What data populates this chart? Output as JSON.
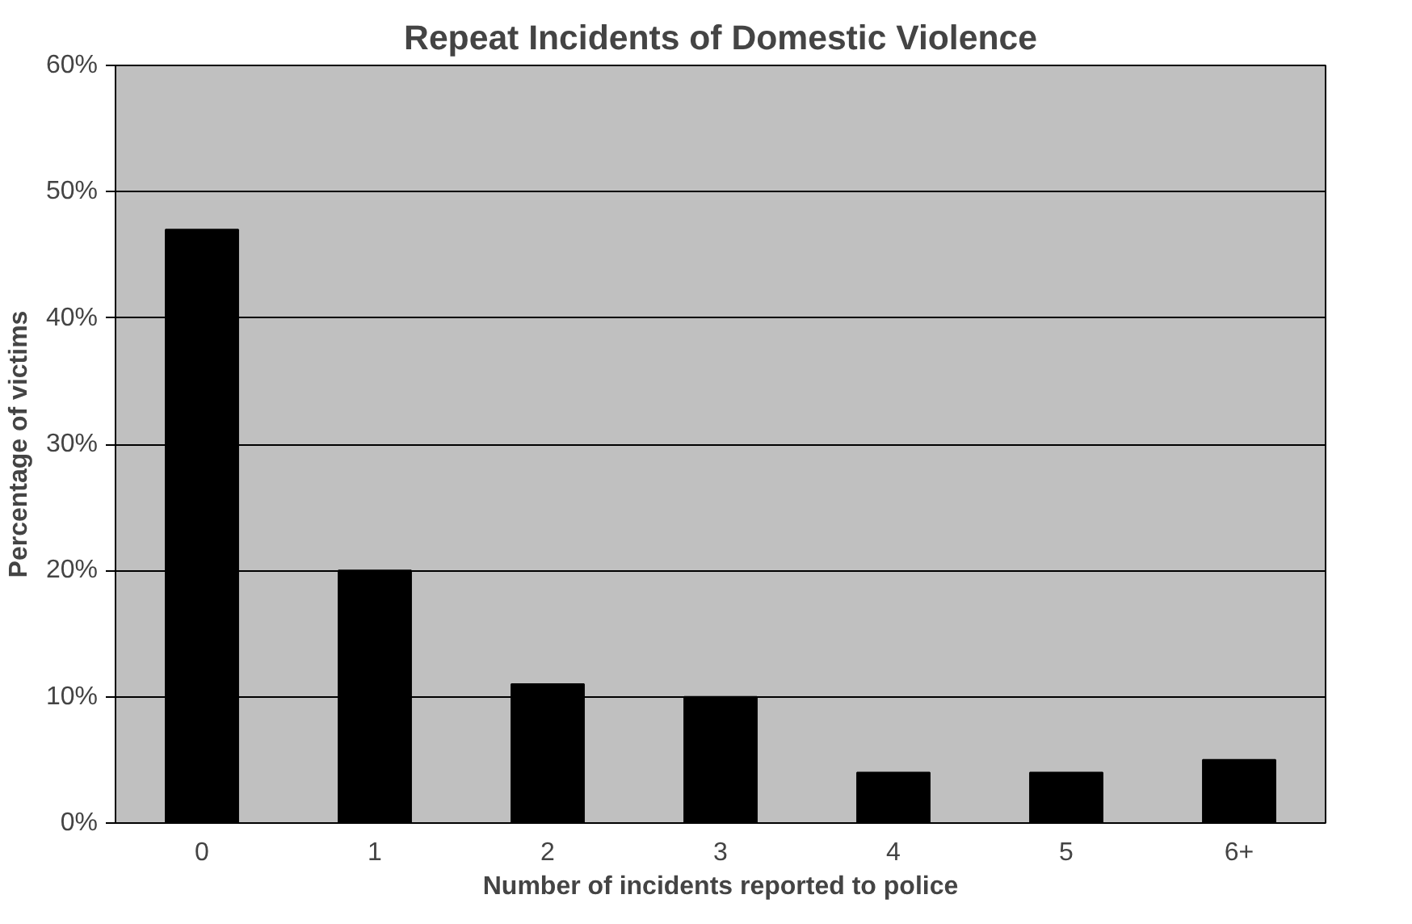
{
  "chart_data": {
    "type": "bar",
    "title": "Repeat Incidents of Domestic Violence",
    "xlabel": "Number of incidents reported to police",
    "ylabel": "Percentage of victims",
    "categories": [
      "0",
      "1",
      "2",
      "3",
      "4",
      "5",
      "6+"
    ],
    "values": [
      47,
      20,
      11,
      10,
      4,
      4,
      5
    ],
    "color": "#000000",
    "ylim": [
      0,
      60
    ],
    "yticks": [
      {
        "value": 0,
        "label": "0%"
      },
      {
        "value": 10,
        "label": "10%"
      },
      {
        "value": 20,
        "label": "20%"
      },
      {
        "value": 30,
        "label": "30%"
      },
      {
        "value": 40,
        "label": "40%"
      },
      {
        "value": 50,
        "label": "50%"
      },
      {
        "value": 60,
        "label": "60%"
      }
    ],
    "grid": "y"
  }
}
